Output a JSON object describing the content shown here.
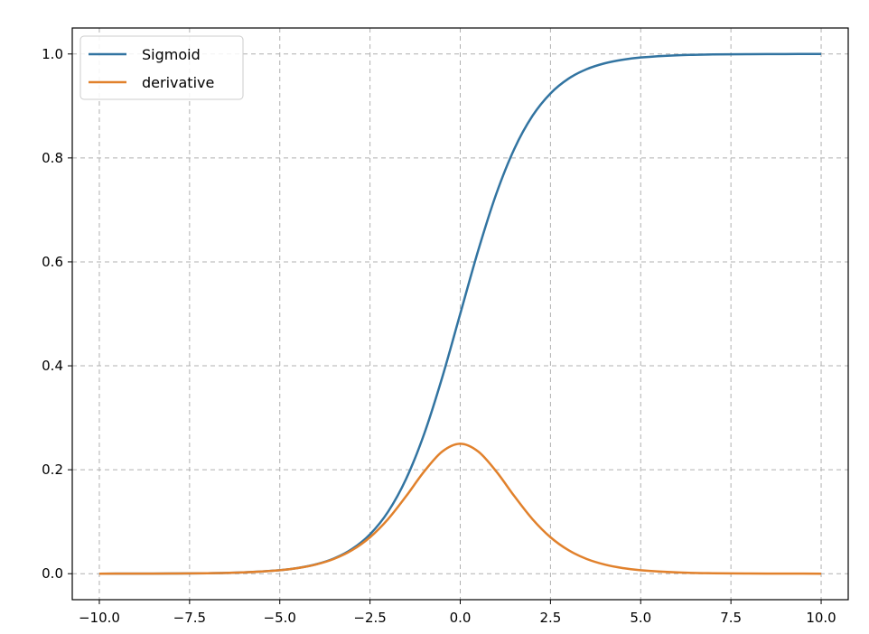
{
  "chart_data": {
    "type": "line",
    "title": "",
    "xlabel": "",
    "ylabel": "",
    "xlim": [
      -10.75,
      10.75
    ],
    "ylim": [
      -0.05,
      1.05
    ],
    "grid": true,
    "legend_position": "top-left",
    "x_ticks": [
      -10.0,
      -7.5,
      -5.0,
      -2.5,
      0.0,
      2.5,
      5.0,
      7.5,
      10.0
    ],
    "x_tick_labels": [
      "−10.0",
      "−7.5",
      "−5.0",
      "−2.5",
      "0.0",
      "2.5",
      "5.0",
      "7.5",
      "10.0"
    ],
    "y_ticks": [
      0.0,
      0.2,
      0.4,
      0.6,
      0.8,
      1.0
    ],
    "y_tick_labels": [
      "0.0",
      "0.2",
      "0.4",
      "0.6",
      "0.8",
      "1.0"
    ],
    "x": [
      -10,
      -9,
      -8,
      -7,
      -6,
      -5,
      -4.5,
      -4,
      -3.5,
      -3,
      -2.5,
      -2,
      -1.5,
      -1,
      -0.5,
      0,
      0.5,
      1,
      1.5,
      2,
      2.5,
      3,
      3.5,
      4,
      4.5,
      5,
      6,
      7,
      8,
      9,
      10
    ],
    "series": [
      {
        "name": "Sigmoid",
        "color": "#3274a1",
        "values": [
          4.54e-05,
          0.0001234,
          0.0003354,
          0.000911,
          0.002473,
          0.006693,
          0.01099,
          0.01799,
          0.02931,
          0.04743,
          0.07586,
          0.1192,
          0.1824,
          0.2689,
          0.3775,
          0.5,
          0.6225,
          0.7311,
          0.8176,
          0.8808,
          0.9241,
          0.9526,
          0.9707,
          0.982,
          0.989,
          0.9933,
          0.9975,
          0.9991,
          0.9997,
          0.9999,
          1.0
        ]
      },
      {
        "name": "derivative",
        "color": "#e1812c",
        "values": [
          4.54e-05,
          0.0001234,
          0.0003353,
          0.00091,
          0.002467,
          0.006648,
          0.01086,
          0.01766,
          0.02845,
          0.04518,
          0.07011,
          0.105,
          0.1491,
          0.1966,
          0.235,
          0.25,
          0.235,
          0.1966,
          0.1491,
          0.105,
          0.07011,
          0.04518,
          0.02845,
          0.01766,
          0.01086,
          0.006648,
          0.002467,
          0.00091,
          0.0003353,
          0.0001234,
          4.54e-05
        ]
      }
    ]
  }
}
